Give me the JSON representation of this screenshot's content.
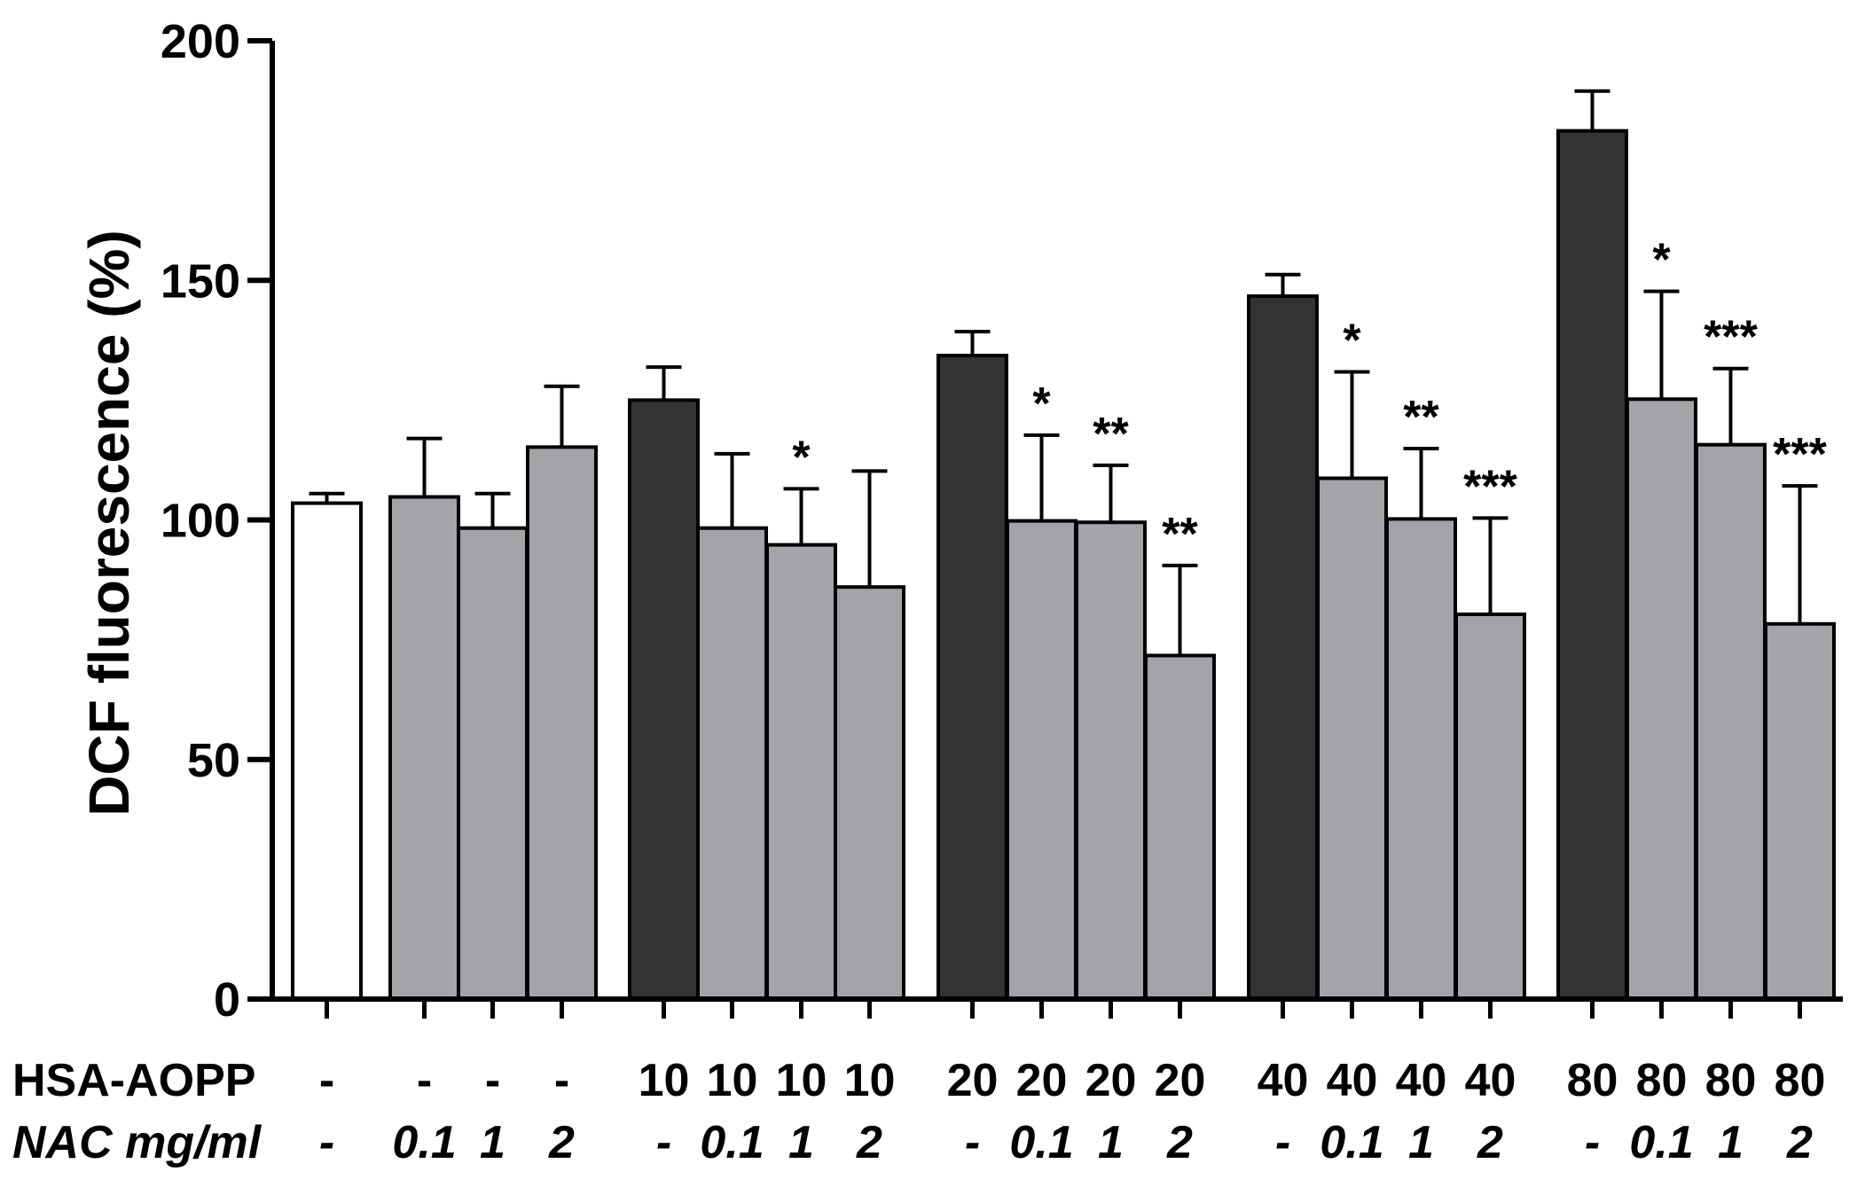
{
  "chart_data": {
    "type": "bar",
    "ylabel": "DCF fluorescence (%)",
    "ylim": [
      0,
      200
    ],
    "yticks": [
      "0",
      "50",
      "100",
      "150",
      "200"
    ],
    "row_labels": {
      "hsa": "HSA-AOPP",
      "nac": "NAC mg/ml"
    },
    "colors": {
      "control": "#ffffff",
      "hsa": "#333333",
      "nac": "#a3a3a8",
      "stroke": "#000000"
    },
    "bars": [
      {
        "hsa": "-",
        "nac": "-",
        "nac_bold": true,
        "value": 103.5,
        "error": 2,
        "color_key": "control",
        "sig": ""
      },
      {
        "hsa": "-",
        "nac": "0.1",
        "nac_bold": false,
        "value": 104.8,
        "error": 12.2,
        "color_key": "nac",
        "sig": ""
      },
      {
        "hsa": "-",
        "nac": "1",
        "nac_bold": false,
        "value": 98.3,
        "error": 7.2,
        "color_key": "nac",
        "sig": ""
      },
      {
        "hsa": "-",
        "nac": "2",
        "nac_bold": false,
        "value": 115.2,
        "error": 12.7,
        "color_key": "nac",
        "sig": ""
      },
      {
        "hsa": "10",
        "nac": "-",
        "nac_bold": true,
        "value": 125,
        "error": 6.9,
        "color_key": "hsa",
        "sig": ""
      },
      {
        "hsa": "10",
        "nac": "0.1",
        "nac_bold": true,
        "value": 98.3,
        "error": 15.5,
        "color_key": "nac",
        "sig": ""
      },
      {
        "hsa": "10",
        "nac": "1",
        "nac_bold": true,
        "value": 94.8,
        "error": 11.7,
        "color_key": "nac",
        "sig": "*"
      },
      {
        "hsa": "10",
        "nac": "2",
        "nac_bold": true,
        "value": 86,
        "error": 24.2,
        "color_key": "nac",
        "sig": ""
      },
      {
        "hsa": "20",
        "nac": "-",
        "nac_bold": true,
        "value": 134.3,
        "error": 5,
        "color_key": "hsa",
        "sig": ""
      },
      {
        "hsa": "20",
        "nac": "0.1",
        "nac_bold": true,
        "value": 99.8,
        "error": 17.9,
        "color_key": "nac",
        "sig": "*"
      },
      {
        "hsa": "20",
        "nac": "1",
        "nac_bold": true,
        "value": 99.5,
        "error": 11.9,
        "color_key": "nac",
        "sig": "**"
      },
      {
        "hsa": "20",
        "nac": "2",
        "nac_bold": true,
        "value": 71.7,
        "error": 18.8,
        "color_key": "nac",
        "sig": "**"
      },
      {
        "hsa": "40",
        "nac": "-",
        "nac_bold": true,
        "value": 146.7,
        "error": 4.5,
        "color_key": "hsa",
        "sig": ""
      },
      {
        "hsa": "40",
        "nac": "0.1",
        "nac_bold": true,
        "value": 108.7,
        "error": 22.2,
        "color_key": "nac",
        "sig": "*"
      },
      {
        "hsa": "40",
        "nac": "1",
        "nac_bold": true,
        "value": 100.2,
        "error": 14.7,
        "color_key": "nac",
        "sig": "**"
      },
      {
        "hsa": "40",
        "nac": "2",
        "nac_bold": true,
        "value": 80.3,
        "error": 20.1,
        "color_key": "nac",
        "sig": "***"
      },
      {
        "hsa": "80",
        "nac": "-",
        "nac_bold": true,
        "value": 181.2,
        "error": 8.3,
        "color_key": "hsa",
        "sig": ""
      },
      {
        "hsa": "80",
        "nac": "0.1",
        "nac_bold": true,
        "value": 125.2,
        "error": 22.5,
        "color_key": "nac",
        "sig": "*"
      },
      {
        "hsa": "80",
        "nac": "1",
        "nac_bold": true,
        "value": 115.7,
        "error": 15.9,
        "color_key": "nac",
        "sig": "***"
      },
      {
        "hsa": "80",
        "nac": "2",
        "nac_bold": true,
        "value": 78.3,
        "error": 28.8,
        "color_key": "nac",
        "sig": "***"
      }
    ]
  }
}
